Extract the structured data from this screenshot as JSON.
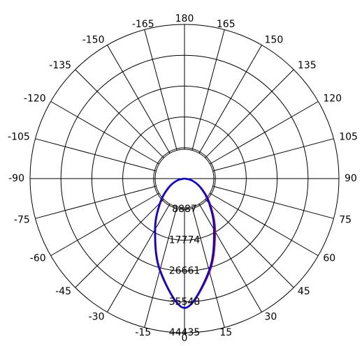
{
  "chart_data": {
    "type": "polar",
    "title": "",
    "angle_labels": [
      "0",
      "15",
      "30",
      "45",
      "60",
      "75",
      "90",
      "105",
      "120",
      "135",
      "150",
      "165",
      "180",
      "-165",
      "-150",
      "-135",
      "-120",
      "-105",
      "-90",
      "-75",
      "-60",
      "-45",
      "-30",
      "-15"
    ],
    "radial_axis": {
      "ticks": [
        8887,
        17774,
        26661,
        35548,
        44435
      ],
      "tick_labels": [
        "8887",
        "17774",
        "26661",
        "35548",
        "44435"
      ],
      "range": [
        0,
        44435
      ]
    },
    "grid": true,
    "series": [
      {
        "color": "#cc0000",
        "angles": [
          -90,
          -75,
          -60,
          -45,
          -30,
          -15,
          0,
          15,
          30,
          45,
          60,
          75,
          90
        ],
        "values": [
          0,
          2200,
          5200,
          9800,
          16800,
          27200,
          37300,
          27800,
          17600,
          10400,
          5600,
          2400,
          0
        ]
      },
      {
        "color": "#0000ee",
        "angles": [
          -90,
          -75,
          -60,
          -45,
          -30,
          -15,
          0,
          15,
          30,
          45,
          60,
          75,
          90
        ],
        "values": [
          0,
          2300,
          5400,
          10000,
          17000,
          27400,
          37300,
          27400,
          17000,
          10000,
          5400,
          2300,
          0
        ]
      }
    ]
  }
}
